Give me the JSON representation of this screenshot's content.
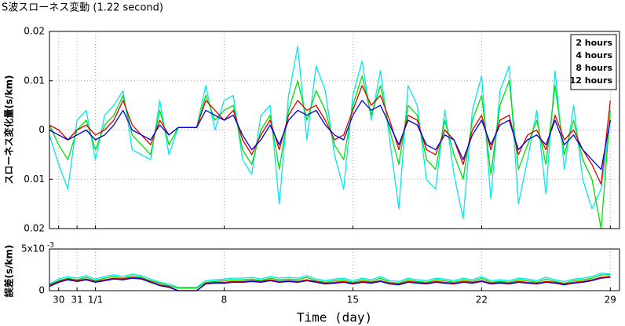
{
  "chart_data": [
    {
      "type": "line",
      "title": "S波スローネス変動 (1.22 second)",
      "y_label": "スローネス変化量(s/km)",
      "x": [
        -1.5,
        -1,
        -0.5,
        0,
        0.5,
        1,
        1.5,
        2,
        2.5,
        3,
        3.5,
        4,
        4.5,
        5,
        5.5,
        6,
        6.5,
        7,
        7.5,
        8,
        8.5,
        9,
        9.5,
        10,
        10.5,
        11,
        11.5,
        12,
        12.5,
        13,
        13.5,
        14,
        14.5,
        15,
        15.5,
        16,
        16.5,
        17,
        17.5,
        18,
        18.5,
        19,
        19.5,
        20,
        20.5,
        21,
        21.5,
        22,
        22.5,
        23,
        23.5,
        24,
        24.5,
        25,
        25.5,
        26,
        26.5,
        27,
        27.5,
        28,
        28.5,
        29
      ],
      "xlim": [
        -1.5,
        29.5
      ],
      "ylim": [
        -0.02,
        0.02
      ],
      "yticks": [
        {
          "value": -0.02,
          "label": "0.02"
        },
        {
          "value": -0.01,
          "label": "0.01"
        },
        0,
        0.01,
        0.02
      ],
      "grid": true,
      "legend": "upper right",
      "series": [
        {
          "name": "2 hours",
          "color": "#00e8f0",
          "values": [
            -0.001,
            -0.007,
            -0.012,
            0.002,
            0.004,
            -0.006,
            0.003,
            0.005,
            0.008,
            -0.004,
            -0.005,
            -0.006,
            0.006,
            -0.005,
            0.0005,
            0.0005,
            0.0005,
            0.009,
            0,
            0.006,
            0.007,
            -0.006,
            -0.009,
            0.003,
            0.005,
            -0.015,
            0.007,
            0.017,
            -0.002,
            0.013,
            0.008,
            -0.005,
            -0.012,
            0.007,
            0.014,
            0.002,
            0.012,
            -0.002,
            -0.016,
            0.009,
            0.005,
            -0.01,
            -0.012,
            0.004,
            -0.009,
            -0.018,
            0.004,
            0.011,
            -0.014,
            0.008,
            0.013,
            -0.015,
            -0.006,
            0.004,
            -0.013,
            0.012,
            -0.008,
            0.005,
            -0.01,
            -0.016,
            -0.012,
            0.002
          ]
        },
        {
          "name": "4 hours",
          "color": "#00e000",
          "values": [
            0.001,
            -0.003,
            -0.006,
            0,
            0.002,
            -0.004,
            0.001,
            0.003,
            0.007,
            -0.001,
            -0.003,
            -0.005,
            0.004,
            -0.003,
            0.0005,
            0.0005,
            0.0005,
            0.007,
            0.002,
            0.004,
            0.005,
            -0.004,
            -0.007,
            0,
            0.003,
            -0.008,
            0.004,
            0.01,
            0.002,
            0.008,
            0.004,
            -0.003,
            -0.006,
            0.005,
            0.011,
            0.003,
            0.009,
            0,
            -0.007,
            0.005,
            0.003,
            -0.006,
            -0.008,
            0.002,
            -0.005,
            -0.01,
            0.002,
            0.007,
            -0.009,
            0.005,
            0.01,
            -0.008,
            -0.003,
            0.002,
            -0.007,
            0.009,
            -0.005,
            0.002,
            -0.006,
            -0.01,
            -0.02,
            0.004
          ]
        },
        {
          "name": "8 hours",
          "color": "#e00000",
          "values": [
            0.001,
            0,
            -0.002,
            0,
            0.001,
            -0.001,
            0,
            0.002,
            0.006,
            0.001,
            -0.001,
            -0.003,
            0.002,
            -0.001,
            0.0005,
            0.0005,
            0.0005,
            0.006,
            0.004,
            0.002,
            0.004,
            -0.002,
            -0.005,
            -0.001,
            0.002,
            -0.004,
            0.003,
            0.006,
            0.004,
            0.005,
            0.002,
            -0.002,
            -0.001,
            0.004,
            0.009,
            0.005,
            0.007,
            0.002,
            -0.004,
            0.003,
            0.002,
            -0.004,
            -0.005,
            0,
            -0.002,
            -0.007,
            0,
            0.003,
            -0.004,
            0.002,
            0.003,
            -0.005,
            -0.001,
            0,
            -0.004,
            0.003,
            -0.002,
            0,
            -0.004,
            -0.007,
            -0.011,
            0.006
          ]
        },
        {
          "name": "12 hours",
          "color": "#0000e0",
          "values": [
            0,
            -0.001,
            -0.002,
            -0.001,
            0,
            -0.002,
            -0.001,
            0.001,
            0.004,
            0,
            -0.001,
            -0.002,
            0.001,
            -0.001,
            0.0005,
            0.0005,
            0.0005,
            0.004,
            0.003,
            0.002,
            0.003,
            -0.001,
            -0.004,
            -0.002,
            0.001,
            -0.003,
            0.002,
            0.004,
            0.003,
            0.004,
            0.001,
            -0.001,
            -0.002,
            0.003,
            0.006,
            0.004,
            0.005,
            0.001,
            -0.003,
            0.002,
            0.001,
            -0.003,
            -0.004,
            -0.001,
            -0.002,
            -0.006,
            -0.001,
            0.002,
            -0.003,
            0.001,
            0.002,
            -0.004,
            -0.002,
            -0.001,
            -0.003,
            0.002,
            -0.003,
            -0.001,
            -0.004,
            -0.006,
            -0.008,
            0.002
          ]
        }
      ]
    },
    {
      "type": "line",
      "y_label": "誤差(s/km)",
      "x_label": "Time (day)",
      "x": [
        -1.5,
        -1,
        -0.5,
        0,
        0.5,
        1,
        1.5,
        2,
        2.5,
        3,
        3.5,
        4,
        4.5,
        5,
        5.5,
        6,
        6.5,
        7,
        7.5,
        8,
        8.5,
        9,
        9.5,
        10,
        10.5,
        11,
        11.5,
        12,
        12.5,
        13,
        13.5,
        14,
        14.5,
        15,
        15.5,
        16,
        16.5,
        17,
        17.5,
        18,
        18.5,
        19,
        19.5,
        20,
        20.5,
        21,
        21.5,
        22,
        22.5,
        23,
        23.5,
        24,
        24.5,
        25,
        25.5,
        26,
        26.5,
        27,
        27.5,
        28,
        28.5,
        29
      ],
      "xlim": [
        -1.5,
        29.5
      ],
      "xticks": [
        {
          "value": -1,
          "label": "30"
        },
        {
          "value": 0,
          "label": "31"
        },
        {
          "value": 1,
          "label": "1/1"
        },
        8,
        15,
        22,
        29
      ],
      "ylim": [
        0,
        5
      ],
      "yticks": [
        0,
        {
          "value": 5,
          "label": "5x10"
        }
      ],
      "y_exponent": "-3",
      "grid": true,
      "series": [
        {
          "name": "2 hours",
          "color": "#00e8f0",
          "values": [
            0.8,
            1.4,
            1.7,
            1.5,
            1.8,
            1.4,
            1.7,
            1.9,
            1.7,
            2.0,
            1.8,
            1.4,
            1.0,
            0.8,
            0.4,
            0.4,
            0.4,
            1.2,
            1.3,
            1.4,
            1.5,
            1.5,
            1.6,
            1.4,
            1.7,
            1.5,
            1.6,
            1.5,
            1.8,
            1.4,
            1.2,
            1.4,
            1.5,
            1.2,
            1.5,
            1.3,
            1.7,
            1.2,
            1.1,
            1.5,
            1.3,
            1.2,
            1.5,
            1.4,
            1.2,
            1.5,
            1.3,
            1.7,
            1.2,
            1.3,
            1.2,
            1.5,
            1.4,
            1.2,
            1.6,
            1.3,
            1.1,
            1.4,
            1.5,
            1.7,
            2.1,
            2.0
          ]
        },
        {
          "name": "4 hours",
          "color": "#00e000",
          "values": [
            0.7,
            1.2,
            1.5,
            1.3,
            1.6,
            1.2,
            1.5,
            1.7,
            1.5,
            1.8,
            1.6,
            1.2,
            0.9,
            0.6,
            0.3,
            0.3,
            0.3,
            1.0,
            1.1,
            1.2,
            1.3,
            1.3,
            1.4,
            1.2,
            1.5,
            1.3,
            1.4,
            1.3,
            1.6,
            1.2,
            1.0,
            1.2,
            1.3,
            1.0,
            1.3,
            1.1,
            1.5,
            1.0,
            0.9,
            1.3,
            1.1,
            1.0,
            1.3,
            1.2,
            1.0,
            1.3,
            1.1,
            1.5,
            1.0,
            1.1,
            1.0,
            1.3,
            1.2,
            1.0,
            1.4,
            1.1,
            0.9,
            1.2,
            1.3,
            1.5,
            1.9,
            1.9
          ]
        },
        {
          "name": "8 hours",
          "color": "#e00000",
          "values": [
            0.6,
            1.1,
            1.4,
            1.2,
            1.4,
            1.1,
            1.3,
            1.5,
            1.4,
            1.6,
            1.5,
            1.1,
            0.7,
            0.5,
            0,
            0,
            0,
            0.9,
            1.0,
            1.0,
            1.1,
            1.1,
            1.2,
            1.1,
            1.3,
            1.1,
            1.2,
            1.1,
            1.3,
            1.1,
            0.9,
            1.0,
            1.1,
            0.9,
            1.1,
            1.0,
            1.2,
            0.9,
            0.8,
            1.1,
            1.0,
            0.9,
            1.1,
            1.0,
            0.9,
            1.1,
            1.0,
            1.2,
            0.9,
            1.0,
            0.9,
            1.1,
            1.0,
            0.9,
            1.1,
            1.0,
            0.8,
            1.0,
            1.1,
            1.3,
            1.6,
            1.7
          ]
        },
        {
          "name": "12 hours",
          "color": "#0000e0",
          "values": [
            0.5,
            1.0,
            1.3,
            1.1,
            1.3,
            1.0,
            1.2,
            1.4,
            1.3,
            1.5,
            1.4,
            1.0,
            0.6,
            0.4,
            0,
            0,
            0,
            0.8,
            0.9,
            0.9,
            1.0,
            1.0,
            1.1,
            1.0,
            1.2,
            1.0,
            1.1,
            1.0,
            1.2,
            1.0,
            0.8,
            0.9,
            1.0,
            0.8,
            1.0,
            0.9,
            1.1,
            0.8,
            0.7,
            1.0,
            0.9,
            0.8,
            1.0,
            0.9,
            0.8,
            1.0,
            0.9,
            1.1,
            0.8,
            0.9,
            0.8,
            1.0,
            0.9,
            0.8,
            1.0,
            0.9,
            0.7,
            0.9,
            1.0,
            1.2,
            1.5,
            1.6
          ]
        }
      ]
    }
  ]
}
